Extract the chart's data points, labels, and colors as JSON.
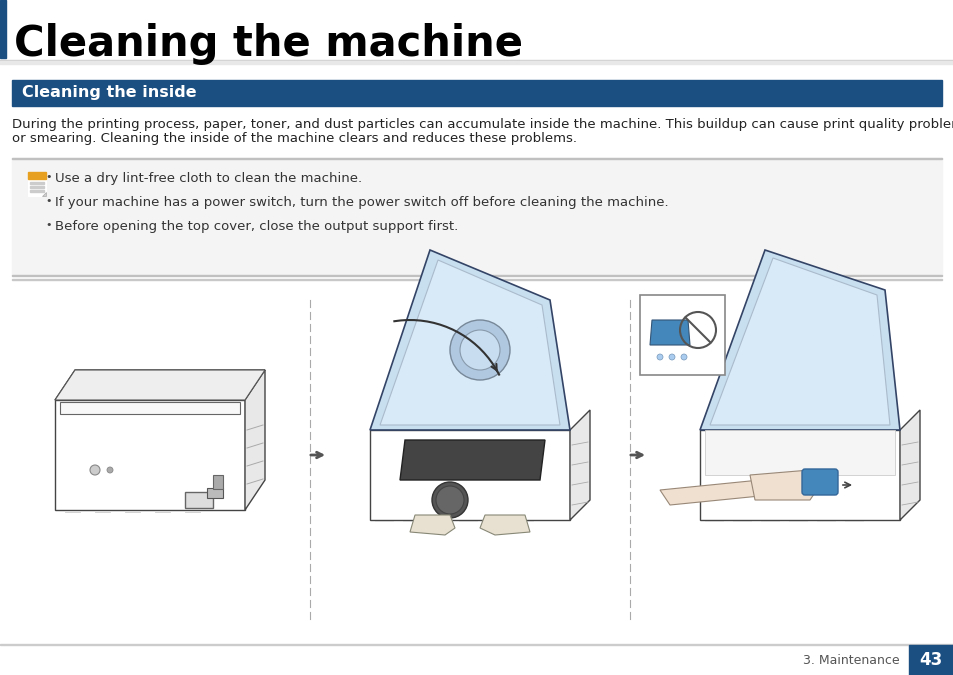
{
  "title": "Cleaning the machine",
  "section_title": "Cleaning the inside",
  "section_bg_color": "#1b4f82",
  "section_text_color": "#ffffff",
  "body_text_line1": "During the printing process, paper, toner, and dust particles can accumulate inside the machine. This buildup can cause print quality problems, such as toner specks",
  "body_text_line2": "or smearing. Cleaning the inside of the machine clears and reduces these problems.",
  "note_bullets": [
    "Use a dry lint-free cloth to clean the machine.",
    "If your machine has a power switch, turn the power switch off before cleaning the machine.",
    "Before opening the top cover, close the output support first."
  ],
  "page_number": "43",
  "page_section": "3. Maintenance",
  "bg_color": "#ffffff",
  "title_bar_color": "#1b4f82",
  "note_bg_color": "#f4f4f4",
  "separator_color": "#c8c8c8",
  "title_fontsize": 30,
  "section_fontsize": 11.5,
  "body_fontsize": 9.5,
  "note_fontsize": 9.5,
  "page_num_fontsize": 12
}
